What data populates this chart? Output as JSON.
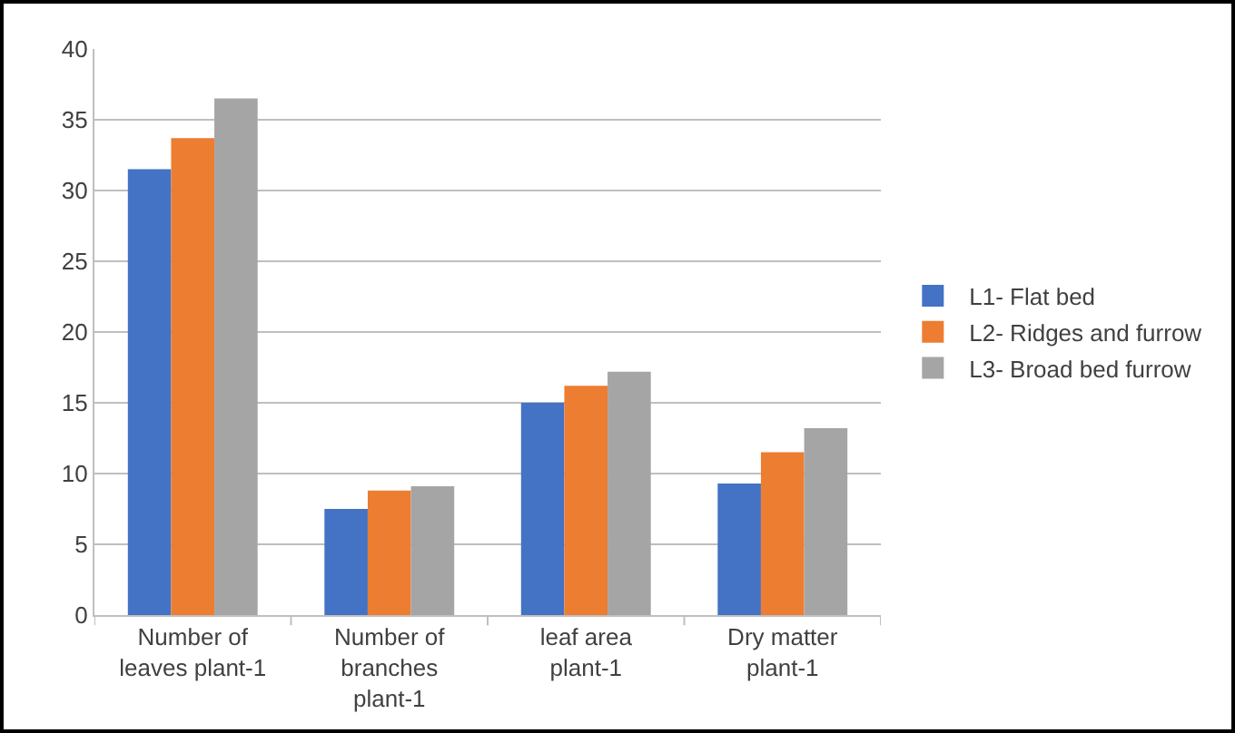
{
  "chart_data": {
    "type": "bar",
    "categories": [
      "Number of leaves plant-1",
      "Number of branches plant-1",
      "leaf area plant-1",
      "Dry matter plant-1"
    ],
    "series": [
      {
        "name": "L1- Flat bed",
        "color": "#4472c4",
        "values": [
          31.5,
          7.5,
          15.0,
          9.3
        ]
      },
      {
        "name": "L2- Ridges and furrow",
        "color": "#ed7d31",
        "values": [
          33.7,
          8.8,
          16.2,
          11.5
        ]
      },
      {
        "name": "L3- Broad bed furrow",
        "color": "#a5a5a5",
        "values": [
          36.5,
          9.1,
          17.2,
          13.2
        ]
      }
    ],
    "ylim": [
      0,
      40
    ],
    "yticks": [
      0,
      5,
      10,
      15,
      20,
      25,
      30,
      35,
      40
    ],
    "grid": "y",
    "legend": "right"
  }
}
